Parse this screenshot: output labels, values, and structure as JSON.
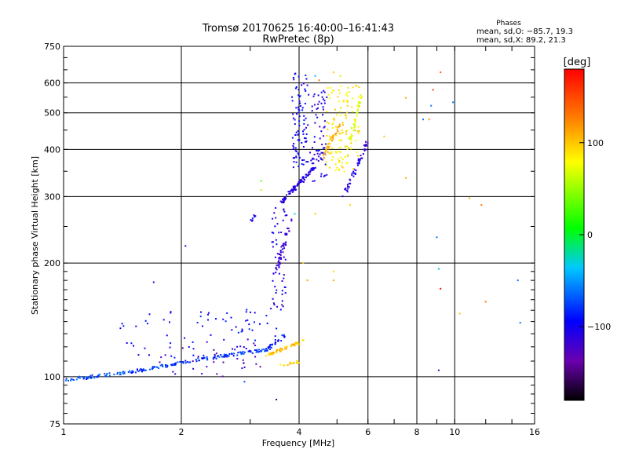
{
  "chart_data": {
    "type": "scatter",
    "title": "Tromsø 20170625 16:40:00–16:41:43",
    "subtitle": "RwPretec (8p)",
    "xlabel": "Frequency [MHz]",
    "ylabel": "Stationary phase Virtual Height [km]",
    "x_scale": "log",
    "y_scale": "log",
    "xlim": [
      1,
      16
    ],
    "ylim": [
      75,
      750
    ],
    "x_ticks": [
      1,
      2,
      4,
      6,
      8,
      10,
      16
    ],
    "x_tick_labels": [
      "1",
      "2",
      "4",
      "6",
      "8",
      "10",
      "16"
    ],
    "x_gridlines": [
      2,
      4,
      6,
      8,
      10
    ],
    "y_ticks": [
      75,
      100,
      200,
      300,
      400,
      500,
      600,
      750
    ],
    "y_tick_labels": [
      "75",
      "100",
      "200",
      "300",
      "400",
      "500",
      "600",
      "750"
    ],
    "y_gridlines": [
      100,
      200,
      300,
      400,
      500,
      600
    ],
    "grid": true,
    "phase_stats": {
      "title": "Phases",
      "line1": "mean, sd,O: −85.7, 19.3",
      "line2": "mean, sd,X:  89.2, 21.3"
    },
    "colorbar": {
      "label": "[deg]",
      "range": [
        -180,
        180
      ],
      "ticks": [
        100,
        0,
        -100
      ],
      "tick_labels": [
        "100",
        "0",
        "−100"
      ],
      "colormap": "rainbow"
    },
    "trace_segments": [
      {
        "series": "o-mode",
        "x0": 1.0,
        "x1": 1.5,
        "y0": 98,
        "y1": 103,
        "phase": -72,
        "n": 55
      },
      {
        "series": "o-mode",
        "x0": 1.5,
        "x1": 2.1,
        "y0": 103,
        "y1": 110,
        "phase": -78,
        "n": 60
      },
      {
        "series": "o-mode",
        "x0": 2.1,
        "x1": 3.3,
        "y0": 110,
        "y1": 118,
        "phase": -80,
        "n": 80
      },
      {
        "series": "o-mode",
        "x0": 3.3,
        "x1": 3.65,
        "y0": 118,
        "y1": 128,
        "phase": -90,
        "n": 25
      },
      {
        "series": "o-mode",
        "x0": 3.4,
        "x1": 3.7,
        "y0": 150,
        "y1": 280,
        "phase": -105,
        "n": 60
      },
      {
        "series": "o-mode",
        "x0": 3.5,
        "x1": 3.8,
        "y0": 190,
        "y1": 260,
        "phase": -118,
        "n": 40
      },
      {
        "series": "o-mode",
        "x0": 3.6,
        "x1": 4.4,
        "y0": 290,
        "y1": 360,
        "phase": -110,
        "n": 90
      },
      {
        "series": "o-mode",
        "x0": 3.85,
        "x1": 4.2,
        "y0": 360,
        "y1": 640,
        "phase": -98,
        "n": 90
      },
      {
        "series": "o-mode",
        "x0": 4.3,
        "x1": 4.7,
        "y0": 330,
        "y1": 580,
        "phase": -108,
        "n": 70
      },
      {
        "series": "o-mode",
        "x0": 5.2,
        "x1": 6.0,
        "y0": 300,
        "y1": 420,
        "phase": -112,
        "n": 50
      },
      {
        "series": "o-mode",
        "x0": 3.0,
        "x1": 3.1,
        "y0": 258,
        "y1": 270,
        "phase": -100,
        "n": 8
      },
      {
        "series": "x-mode",
        "x0": 3.3,
        "x1": 4.1,
        "y0": 114,
        "y1": 124,
        "phase": 100,
        "n": 55
      },
      {
        "series": "x-mode",
        "x0": 3.6,
        "x1": 4.0,
        "y0": 107,
        "y1": 110,
        "phase": 95,
        "n": 15
      },
      {
        "series": "x-mode",
        "x0": 4.7,
        "x1": 5.7,
        "y0": 350,
        "y1": 600,
        "phase": 88,
        "n": 120
      },
      {
        "series": "x-mode",
        "x0": 4.6,
        "x1": 5.1,
        "y0": 380,
        "y1": 470,
        "phase": 110,
        "n": 40
      },
      {
        "series": "x-mode",
        "x0": 5.3,
        "x1": 5.8,
        "y0": 400,
        "y1": 560,
        "phase": 70,
        "n": 40
      },
      {
        "series": "scatter",
        "x0": 1.4,
        "x1": 3.5,
        "y0": 112,
        "y1": 150,
        "phase": -95,
        "n": 70
      },
      {
        "series": "scatter",
        "x0": 1.7,
        "x1": 3.2,
        "y0": 100,
        "y1": 125,
        "phase": -130,
        "n": 35
      }
    ],
    "isolated_points": [
      {
        "x": 2.05,
        "y": 222,
        "phase": -118
      },
      {
        "x": 1.7,
        "y": 178,
        "phase": -105
      },
      {
        "x": 3.2,
        "y": 330,
        "phase": 30
      },
      {
        "x": 3.2,
        "y": 312,
        "phase": 60
      },
      {
        "x": 2.9,
        "y": 97,
        "phase": -70
      },
      {
        "x": 3.5,
        "y": 87,
        "phase": -150
      },
      {
        "x": 6.6,
        "y": 433,
        "phase": 100
      },
      {
        "x": 7.5,
        "y": 548,
        "phase": 110
      },
      {
        "x": 7.5,
        "y": 336,
        "phase": 110
      },
      {
        "x": 8.3,
        "y": 480,
        "phase": -60
      },
      {
        "x": 8.6,
        "y": 480,
        "phase": 120
      },
      {
        "x": 8.7,
        "y": 522,
        "phase": -60
      },
      {
        "x": 8.8,
        "y": 575,
        "phase": 150
      },
      {
        "x": 9.2,
        "y": 640,
        "phase": 140
      },
      {
        "x": 9.0,
        "y": 234,
        "phase": -60
      },
      {
        "x": 9.1,
        "y": 104,
        "phase": -125
      },
      {
        "x": 9.2,
        "y": 171,
        "phase": 175
      },
      {
        "x": 9.1,
        "y": 193,
        "phase": -40
      },
      {
        "x": 9.9,
        "y": 533,
        "phase": -60
      },
      {
        "x": 10.3,
        "y": 147,
        "phase": 100
      },
      {
        "x": 10.9,
        "y": 297,
        "phase": 110
      },
      {
        "x": 11.7,
        "y": 285,
        "phase": 130
      },
      {
        "x": 12.0,
        "y": 158,
        "phase": 130
      },
      {
        "x": 14.5,
        "y": 180,
        "phase": -60
      },
      {
        "x": 14.7,
        "y": 139,
        "phase": -60
      },
      {
        "x": 4.2,
        "y": 180,
        "phase": 110
      },
      {
        "x": 4.1,
        "y": 200,
        "phase": 100
      },
      {
        "x": 4.4,
        "y": 270,
        "phase": 100
      },
      {
        "x": 4.5,
        "y": 610,
        "phase": 130
      },
      {
        "x": 4.4,
        "y": 626,
        "phase": -40
      },
      {
        "x": 4.9,
        "y": 640,
        "phase": 100
      },
      {
        "x": 5.1,
        "y": 626,
        "phase": 60
      },
      {
        "x": 4.9,
        "y": 180,
        "phase": 110
      },
      {
        "x": 4.9,
        "y": 190,
        "phase": 90
      },
      {
        "x": 5.4,
        "y": 285,
        "phase": 95
      },
      {
        "x": 3.9,
        "y": 270,
        "phase": -30
      }
    ]
  }
}
